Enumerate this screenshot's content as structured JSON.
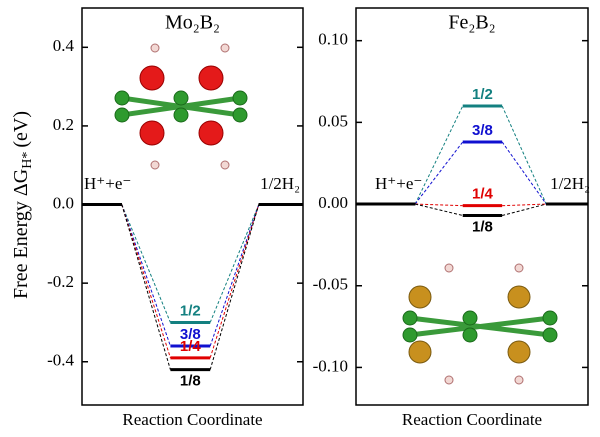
{
  "chart_data": [
    {
      "type": "energy-level",
      "title": "Mo₂B₂",
      "x_label": "Reaction Coordinate",
      "y_label": {
        "text": "Free Energy ΔG",
        "sub": "H*",
        "unit": "(eV)"
      },
      "categories": [
        "H⁺+e⁻",
        null,
        "1/2H₂"
      ],
      "series": [
        {
          "name": "1/2",
          "color": "#138080",
          "values": [
            0,
            -0.3,
            0
          ]
        },
        {
          "name": "3/8",
          "color": "#1010d0",
          "values": [
            0,
            -0.36,
            0
          ]
        },
        {
          "name": "1/4",
          "color": "#e00000",
          "values": [
            0,
            -0.39,
            0
          ]
        },
        {
          "name": "1/8",
          "color": "#000000",
          "values": [
            0,
            -0.42,
            0
          ]
        }
      ],
      "ylim": [
        -0.51,
        0.5
      ],
      "yticks": [
        {
          "value": -0.4,
          "label": "-0.4"
        },
        {
          "value": -0.2,
          "label": "-0.2"
        },
        {
          "value": 0,
          "label": "0.0"
        },
        0.2,
        0.4
      ]
    },
    {
      "type": "energy-level",
      "title": "Fe₂B₂",
      "x_label": "Reaction Coordinate",
      "categories": [
        "H⁺+e⁻",
        null,
        "1/2H₂"
      ],
      "series": [
        {
          "name": "1/2",
          "color": "#138080",
          "values": [
            0,
            0.06,
            0
          ]
        },
        {
          "name": "3/8",
          "color": "#1010d0",
          "values": [
            0,
            0.038,
            0
          ]
        },
        {
          "name": "1/4",
          "color": "#e00000",
          "values": [
            0,
            -0.001,
            0
          ]
        },
        {
          "name": "1/8",
          "color": "#000000",
          "values": [
            0,
            -0.007,
            0
          ]
        }
      ],
      "ylim": [
        -0.123,
        0.12
      ],
      "yticks": [
        {
          "value": -0.1,
          "label": "-0.10"
        },
        -0.05,
        {
          "value": 0,
          "label": "0.00"
        },
        0.05,
        {
          "value": 0.1,
          "label": "0.10"
        }
      ]
    }
  ]
}
